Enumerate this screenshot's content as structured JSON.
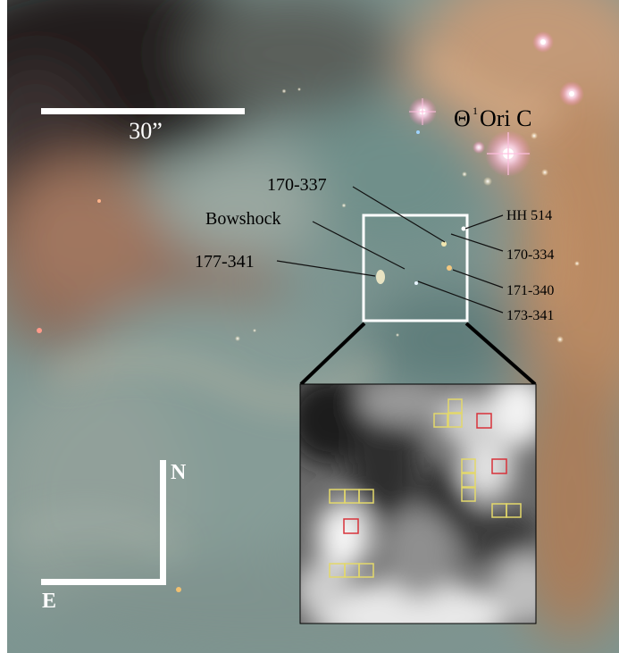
{
  "scale_bar": {
    "label": "30”"
  },
  "star": {
    "label_theta": "Θ",
    "label_sup": "1",
    "label_rest": "Ori C"
  },
  "labels": {
    "l170_337": "170-337",
    "bowshock": "Bowshock",
    "l177_341": "177-341",
    "hh514": "HH 514",
    "l170_334": "170-334",
    "l171_340": "171-340",
    "l173_341": "173-341"
  },
  "compass": {
    "north": "N",
    "east": "E"
  },
  "colors": {
    "nebula_dark": "#2a2622",
    "nebula_teal": "#6f8f8a",
    "nebula_orange": "#b98a63",
    "box_white": "#ffffff",
    "cell_yellow": "#e3d86a",
    "cell_red": "#d8323a"
  }
}
